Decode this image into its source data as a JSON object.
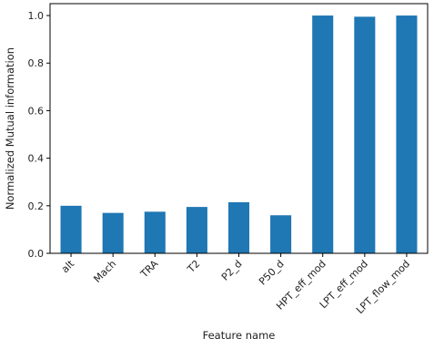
{
  "chart_data": {
    "type": "bar",
    "title": "",
    "xlabel": "Feature name",
    "ylabel": "Normalized Mutual information",
    "categories": [
      "alt",
      "Mach",
      "TRA",
      "T2",
      "P2_d",
      "P50_d",
      "HPT_eff_mod",
      "LPT_eff_mod",
      "LPT_flow_mod"
    ],
    "values": [
      0.2,
      0.17,
      0.175,
      0.195,
      0.215,
      0.16,
      1.0,
      0.995,
      1.0
    ],
    "ylim": [
      0,
      1.05
    ],
    "yticks": [
      0.0,
      0.2,
      0.4,
      0.6,
      0.8,
      1.0
    ],
    "ytick_labels": [
      "0.0",
      "0.2",
      "0.4",
      "0.6",
      "0.8",
      "1.0"
    ],
    "grid": false,
    "legend": "none",
    "bar_color": "#1f77b4"
  }
}
